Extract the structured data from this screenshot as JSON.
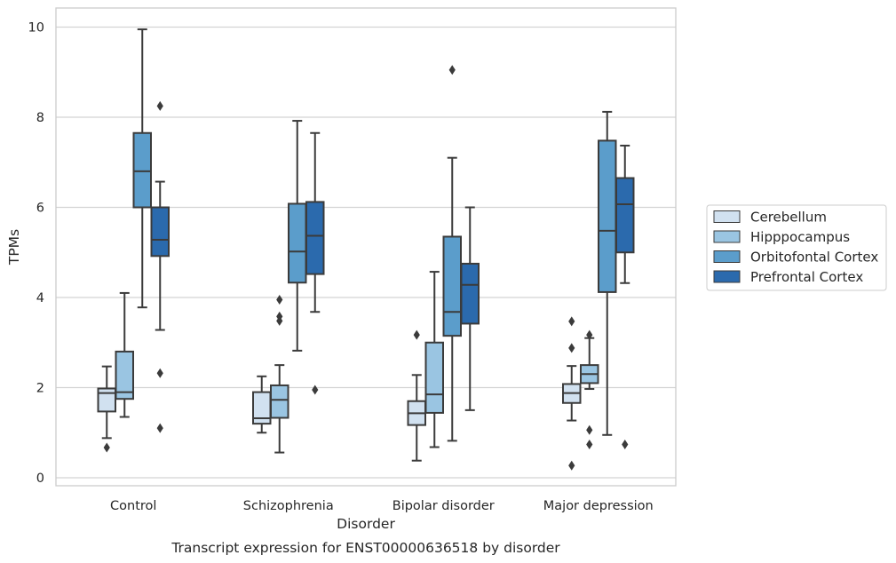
{
  "chart_data": {
    "type": "box",
    "caption": "Transcript expression for ENST00000636518 by disorder",
    "xlabel": "Disorder",
    "ylabel": "TPMs",
    "ylim": [
      -0.2,
      10.45
    ],
    "yticks": [
      0,
      2,
      4,
      6,
      8,
      10
    ],
    "grid": "horizontal",
    "legend_position": "right",
    "categories": [
      "Control",
      "Schizophrenia",
      "Bipolar disorder",
      "Major depression"
    ],
    "series": [
      {
        "name": "Cerebellum",
        "color": "#d1e1f0",
        "boxes": [
          {
            "whisker_low": 0.88,
            "q1": 1.47,
            "median": 1.88,
            "q3": 1.98,
            "whisker_high": 2.47,
            "outliers": [
              0.67
            ]
          },
          {
            "whisker_low": 1.0,
            "q1": 1.2,
            "median": 1.32,
            "q3": 1.9,
            "whisker_high": 2.25,
            "outliers": []
          },
          {
            "whisker_low": 0.38,
            "q1": 1.17,
            "median": 1.43,
            "q3": 1.7,
            "whisker_high": 2.28,
            "outliers": [
              3.17
            ]
          },
          {
            "whisker_low": 1.27,
            "q1": 1.66,
            "median": 1.88,
            "q3": 2.08,
            "whisker_high": 2.48,
            "outliers": [
              3.47,
              2.88,
              0.27
            ]
          }
        ]
      },
      {
        "name": "Hipppocampus",
        "color": "#9ac5e2",
        "boxes": [
          {
            "whisker_low": 1.35,
            "q1": 1.75,
            "median": 1.9,
            "q3": 2.8,
            "whisker_high": 4.1,
            "outliers": []
          },
          {
            "whisker_low": 0.56,
            "q1": 1.33,
            "median": 1.73,
            "q3": 2.05,
            "whisker_high": 2.5,
            "outliers": [
              3.95,
              3.58,
              3.48
            ]
          },
          {
            "whisker_low": 0.68,
            "q1": 1.44,
            "median": 1.85,
            "q3": 3.0,
            "whisker_high": 4.57,
            "outliers": []
          },
          {
            "whisker_low": 1.97,
            "q1": 2.1,
            "median": 2.3,
            "q3": 2.5,
            "whisker_high": 3.1,
            "outliers": [
              3.17,
              1.06,
              0.74
            ]
          }
        ]
      },
      {
        "name": "Orbitofontal Cortex",
        "color": "#5b9dcb",
        "boxes": [
          {
            "whisker_low": 3.78,
            "q1": 6.0,
            "median": 6.8,
            "q3": 7.65,
            "whisker_high": 9.95,
            "outliers": []
          },
          {
            "whisker_low": 2.82,
            "q1": 4.33,
            "median": 5.02,
            "q3": 6.08,
            "whisker_high": 7.92,
            "outliers": []
          },
          {
            "whisker_low": 0.82,
            "q1": 3.15,
            "median": 3.68,
            "q3": 5.35,
            "whisker_high": 7.1,
            "outliers": [
              9.05
            ]
          },
          {
            "whisker_low": 0.95,
            "q1": 4.12,
            "median": 5.48,
            "q3": 7.48,
            "whisker_high": 8.12,
            "outliers": []
          }
        ]
      },
      {
        "name": "Prefrontal Cortex",
        "color": "#2b6aad",
        "boxes": [
          {
            "whisker_low": 3.28,
            "q1": 4.92,
            "median": 5.28,
            "q3": 6.0,
            "whisker_high": 6.57,
            "outliers": [
              8.25,
              2.32,
              1.1
            ]
          },
          {
            "whisker_low": 3.68,
            "q1": 4.52,
            "median": 5.37,
            "q3": 6.12,
            "whisker_high": 7.65,
            "outliers": [
              1.95
            ]
          },
          {
            "whisker_low": 1.5,
            "q1": 3.42,
            "median": 4.28,
            "q3": 4.75,
            "whisker_high": 6.0,
            "outliers": []
          },
          {
            "whisker_low": 4.32,
            "q1": 5.0,
            "median": 6.07,
            "q3": 6.65,
            "whisker_high": 7.37,
            "outliers": [
              0.74
            ]
          }
        ]
      }
    ]
  }
}
